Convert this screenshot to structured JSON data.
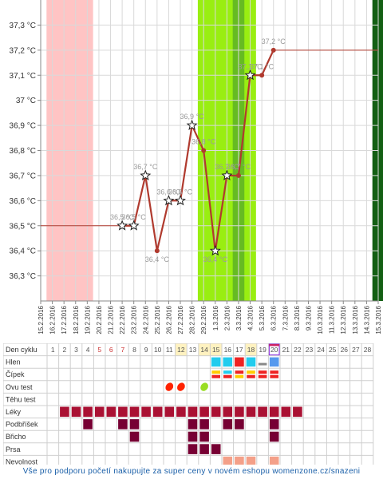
{
  "chart_data": {
    "type": "line",
    "title": "",
    "xlabel": "",
    "ylabel": "",
    "ylim": [
      36.2,
      37.4
    ],
    "y_ticks": [
      "37,3 °C",
      "37,2 °C",
      "37,1 °C",
      "37 °C",
      "36,9 °C",
      "36,8 °C",
      "36,7 °C",
      "36,6 °C",
      "36,5 °C",
      "36,4 °C",
      "36,3 °C"
    ],
    "y_tick_values": [
      37.3,
      37.2,
      37.1,
      37.0,
      36.9,
      36.8,
      36.7,
      36.6,
      36.5,
      36.4,
      36.3
    ],
    "x_dates": [
      "15.2.2016",
      "16.2.2016",
      "17.2.2016",
      "18.2.2016",
      "19.2.2016",
      "20.2.2016",
      "21.2.2016",
      "22.2.2016",
      "23.2.2016",
      "24.2.2016",
      "25.2.2016",
      "26.2.2016",
      "27.2.2016",
      "28.2.2016",
      "29.2.2016",
      "1.3.2016",
      "2.3.2016",
      "3.3.2016",
      "4.3.2016",
      "5.3.2016",
      "6.3.2016",
      "7.3.2016",
      "8.3.2016",
      "9.3.2016",
      "10.3.2016",
      "11.3.2016",
      "12.3.2016",
      "13.3.2016",
      "14.3.2016",
      "15.3.2016"
    ],
    "series": [
      {
        "values": [
          null,
          null,
          null,
          null,
          null,
          null,
          null,
          36.5,
          36.5,
          36.7,
          36.4,
          36.6,
          36.6,
          36.9,
          36.8,
          36.4,
          36.7,
          36.7,
          37.1,
          37.1,
          37.2
        ],
        "point_labels": [
          "",
          "",
          "",
          "",
          "",
          "",
          "",
          "36,5 °C",
          "36,5 °C",
          "36,7 °C",
          "36,4 °C",
          "36,6 °C",
          "36,6 °C",
          "36,9 °C",
          "36,8 °C",
          "36,4 °C",
          "36,7 °C",
          "36,7 °C",
          "37,1 °C",
          "37,1 °C",
          "37,2 °C"
        ],
        "markers": [
          "",
          "",
          "",
          "",
          "",
          "",
          "",
          "star",
          "star",
          "star",
          "dot",
          "star",
          "star",
          "star",
          "dot",
          "star",
          "star",
          "dot",
          "star",
          "dot",
          "dot"
        ],
        "color": "#b03a2e"
      }
    ],
    "baseline_before": 36.5,
    "baseline_after": 37.2,
    "bands": [
      {
        "kind": "period",
        "from": 0.5,
        "to": 4.5,
        "color": "#ffc4c4"
      },
      {
        "kind": "fertile",
        "from": 13.5,
        "to": 18.5,
        "color": "#99ee11"
      },
      {
        "kind": "ovulation",
        "from": 16.5,
        "to": 17.5,
        "color": "#66bb22"
      },
      {
        "kind": "test",
        "from": 28.5,
        "to": 29.5,
        "color": "#135f13"
      }
    ],
    "grid": true
  },
  "table": {
    "header_label": "Den cyklu",
    "days": [
      "1",
      "2",
      "3",
      "4",
      "5",
      "6",
      "7",
      "8",
      "9",
      "10",
      "11",
      "12",
      "13",
      "14",
      "15",
      "16",
      "17",
      "18",
      "19",
      "20",
      "21",
      "22",
      "23",
      "24",
      "25",
      "26",
      "27",
      "28"
    ],
    "rows": [
      {
        "label": "Hlen"
      },
      {
        "label": "Čípek"
      },
      {
        "label": "Ovu test"
      },
      {
        "label": "Těhu test"
      },
      {
        "label": "Léky"
      },
      {
        "label": "Podbříšek"
      },
      {
        "label": "Břicho"
      },
      {
        "label": "Prsa"
      },
      {
        "label": "Nevolnost"
      }
    ],
    "colors": {
      "period_day": "#cc3333",
      "highlight_day": "#fff2c0",
      "meds": "#aa1133",
      "symptom": "#770033",
      "nausea": "#f4a089",
      "mucus_blue": "#22ccee",
      "mucus_red": "#ee2222",
      "mucus_gray": "#888888",
      "ovu_test": "#ff2200",
      "ovu_test_pos": "#99dd22"
    }
  },
  "footer": {
    "text": "Vše pro podporu početí nakupujte za super ceny v novém eshopu womenzone.cz/snazeni"
  }
}
